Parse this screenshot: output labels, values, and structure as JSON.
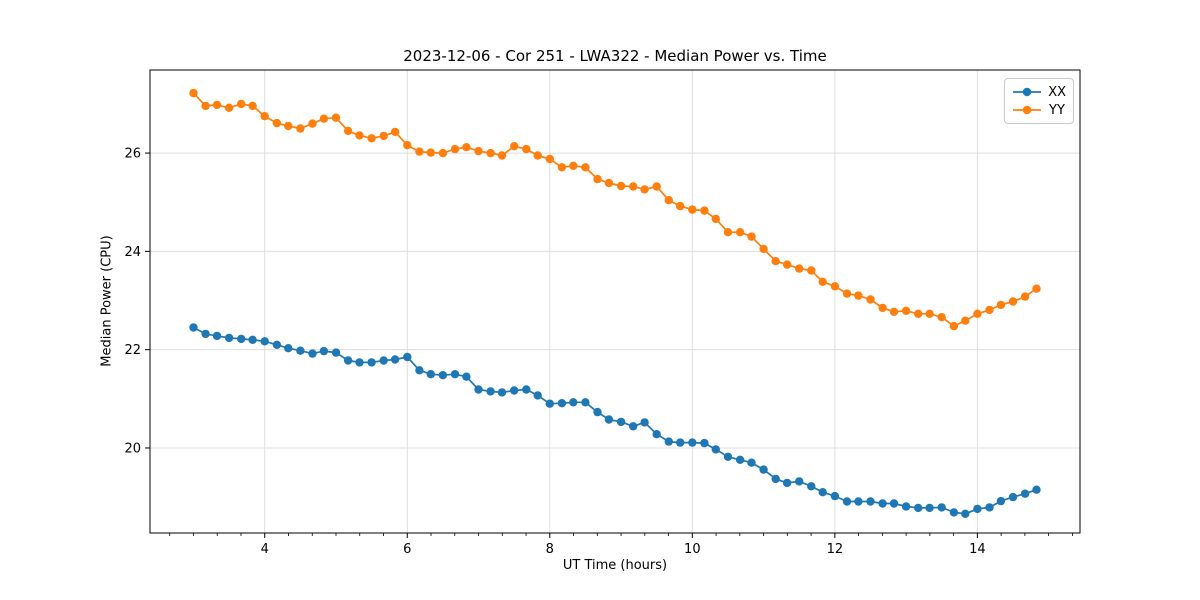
{
  "chart_data": {
    "type": "line",
    "title": "2023-12-06 - Cor 251 - LWA322 - Median Power vs. Time",
    "xlabel": "UT Time (hours)",
    "ylabel": "Median Power (CPU)",
    "x_ticks": [
      4,
      6,
      8,
      10,
      12,
      14
    ],
    "y_ticks": [
      20,
      22,
      24,
      26
    ],
    "x_minor_tick_step": 0.33333,
    "xlim": [
      2.39,
      15.44
    ],
    "ylim": [
      18.27,
      27.69
    ],
    "grid": true,
    "grid_color": "#dedede",
    "legend_position": "upper right",
    "x": [
      3.0,
      3.17,
      3.33,
      3.5,
      3.67,
      3.83,
      4.0,
      4.17,
      4.33,
      4.5,
      4.67,
      4.83,
      5.0,
      5.17,
      5.33,
      5.5,
      5.67,
      5.83,
      6.0,
      6.17,
      6.33,
      6.5,
      6.67,
      6.83,
      7.0,
      7.17,
      7.33,
      7.5,
      7.67,
      7.83,
      8.0,
      8.17,
      8.33,
      8.5,
      8.67,
      8.83,
      9.0,
      9.17,
      9.33,
      9.5,
      9.67,
      9.83,
      10.0,
      10.17,
      10.33,
      10.5,
      10.67,
      10.83,
      11.0,
      11.17,
      11.33,
      11.5,
      11.67,
      11.83,
      12.0,
      12.17,
      12.33,
      12.5,
      12.67,
      12.83,
      13.0,
      13.17,
      13.33,
      13.5,
      13.67,
      13.83,
      14.0,
      14.17,
      14.33,
      14.5,
      14.67,
      14.83
    ],
    "series": [
      {
        "name": "XX",
        "color": "#1f77b4",
        "marker": "o",
        "values": [
          22.45,
          22.32,
          22.28,
          22.24,
          22.22,
          22.2,
          22.17,
          22.1,
          22.03,
          21.98,
          21.92,
          21.97,
          21.94,
          21.78,
          21.74,
          21.74,
          21.78,
          21.8,
          21.85,
          21.58,
          21.5,
          21.48,
          21.5,
          21.45,
          21.19,
          21.15,
          21.13,
          21.17,
          21.19,
          21.07,
          20.9,
          20.91,
          20.93,
          20.93,
          20.73,
          20.58,
          20.53,
          20.44,
          20.52,
          20.28,
          20.13,
          20.11,
          20.11,
          20.1,
          19.97,
          19.82,
          19.76,
          19.7,
          19.56,
          19.37,
          19.29,
          19.32,
          19.22,
          19.1,
          19.02,
          18.91,
          18.91,
          18.91,
          18.87,
          18.87,
          18.81,
          18.78,
          18.78,
          18.79,
          18.69,
          18.66,
          18.76,
          18.79,
          18.92,
          19.0,
          19.07,
          19.15
        ]
      },
      {
        "name": "YY",
        "color": "#ff7f0e",
        "marker": "o",
        "values": [
          27.22,
          26.96,
          26.98,
          26.92,
          27.0,
          26.96,
          26.75,
          26.61,
          26.55,
          26.5,
          26.6,
          26.7,
          26.72,
          26.45,
          26.36,
          26.3,
          26.35,
          26.43,
          26.16,
          26.03,
          26.01,
          26.0,
          26.08,
          26.12,
          26.04,
          26.0,
          25.95,
          26.14,
          26.08,
          25.95,
          25.88,
          25.71,
          25.74,
          25.71,
          25.47,
          25.39,
          25.33,
          25.32,
          25.26,
          25.32,
          25.04,
          24.92,
          24.85,
          24.83,
          24.66,
          24.39,
          24.39,
          24.3,
          24.05,
          23.8,
          23.73,
          23.65,
          23.61,
          23.38,
          23.29,
          23.14,
          23.1,
          23.02,
          22.85,
          22.77,
          22.79,
          22.73,
          22.73,
          22.66,
          22.48,
          22.59,
          22.73,
          22.81,
          22.91,
          22.98,
          23.08,
          23.24
        ]
      }
    ]
  }
}
